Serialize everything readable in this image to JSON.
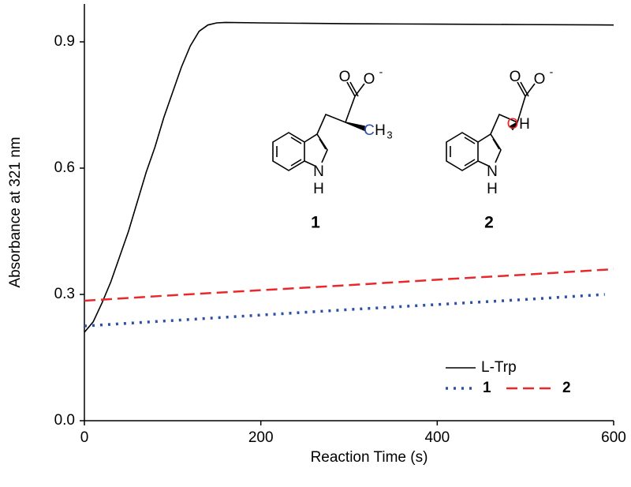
{
  "chart_data": {
    "type": "line",
    "xlabel": "Reaction Time (s)",
    "ylabel": "Absorbance at 321 nm",
    "xlim": [
      0,
      600
    ],
    "ylim": [
      0,
      0.99
    ],
    "xticks": [
      0,
      200,
      400,
      600
    ],
    "yticks": [
      {
        "value": 0,
        "label": "0.0"
      },
      0.3,
      0.6,
      0.9
    ],
    "grid": false,
    "legend": "lower right",
    "series": [
      {
        "name": "L-Trp",
        "color": "#000000",
        "style": "solid",
        "x": [
          0,
          10,
          20,
          30,
          40,
          50,
          60,
          70,
          80,
          90,
          100,
          110,
          120,
          130,
          140,
          150,
          160,
          200,
          300,
          400,
          500,
          600
        ],
        "values": [
          0.21,
          0.235,
          0.28,
          0.33,
          0.39,
          0.45,
          0.52,
          0.59,
          0.65,
          0.72,
          0.78,
          0.84,
          0.89,
          0.925,
          0.94,
          0.945,
          0.946,
          0.945,
          0.943,
          0.942,
          0.941,
          0.94
        ]
      },
      {
        "name": "1",
        "color": "#2e4fa8",
        "style": "dotted",
        "x": [
          0,
          100,
          200,
          300,
          400,
          500,
          590
        ],
        "values": [
          0.225,
          0.238,
          0.251,
          0.264,
          0.276,
          0.288,
          0.3
        ]
      },
      {
        "name": "2",
        "color": "#e8282b",
        "style": "dashed",
        "x": [
          0,
          100,
          200,
          300,
          400,
          500,
          600
        ],
        "values": [
          0.285,
          0.298,
          0.31,
          0.322,
          0.335,
          0.347,
          0.36
        ]
      }
    ]
  },
  "structures": [
    {
      "label": "1",
      "atoms": [
        "O",
        "O",
        "-",
        "C",
        "H",
        "3",
        "N",
        "H"
      ]
    },
    {
      "label": "2",
      "atoms": [
        "O",
        "O",
        "-",
        "O",
        "H",
        "N",
        "H"
      ]
    }
  ]
}
